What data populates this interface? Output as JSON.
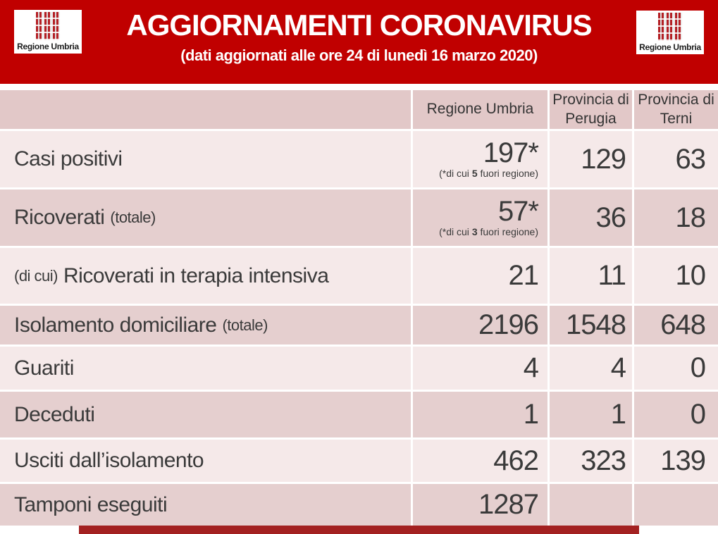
{
  "banner": {
    "title": "AGGIORNAMENTI CORONAVIRUS",
    "subtitle": "(dati aggiornati alle ore 24 di lunedì 16 marzo 2020)",
    "logo_text": "Regione Umbria"
  },
  "colors": {
    "banner_red": "#C00000",
    "footer_bar_red": "#A32121",
    "table_header_row": "#E2C8C8",
    "row_dark": "#E5CFCF",
    "row_light": "#F5E9E9",
    "text": "#3A3A3A"
  },
  "table": {
    "columns": {
      "c1": "Regione Umbria",
      "c2": "Provincia di Perugia",
      "c3": "Provincia di Terni"
    },
    "rows": [
      {
        "label": "Casi positivi",
        "label_small_pre": "",
        "label_small_suf": "",
        "umbria": "197*",
        "note_pre": "(*di cui ",
        "note_num": "5",
        "note_post": " fuori regione)",
        "perugia": "129",
        "terni": "63"
      },
      {
        "label": "Ricoverati",
        "label_small_pre": "",
        "label_small_suf": "(totale)",
        "umbria": "57*",
        "note_pre": "(*di cui ",
        "note_num": "3",
        "note_post": " fuori regione)",
        "perugia": "36",
        "terni": "18"
      },
      {
        "label": "Ricoverati in terapia intensiva",
        "label_small_pre": "(di cui)",
        "label_small_suf": "",
        "umbria": "21",
        "perugia": "11",
        "terni": "10"
      },
      {
        "label": "Isolamento domiciliare",
        "label_small_pre": "",
        "label_small_suf": "(totale)",
        "umbria": "2196",
        "perugia": "1548",
        "terni": "648"
      },
      {
        "label": "Guariti",
        "label_small_pre": "",
        "label_small_suf": "",
        "umbria": "4",
        "perugia": "4",
        "terni": "0"
      },
      {
        "label": "Deceduti",
        "label_small_pre": "",
        "label_small_suf": "",
        "umbria": "1",
        "perugia": "1",
        "terni": "0"
      },
      {
        "label": "Usciti dall’isolamento",
        "label_small_pre": "",
        "label_small_suf": "",
        "umbria": "462",
        "perugia": "323",
        "terni": "139"
      },
      {
        "label": "Tamponi eseguiti",
        "label_small_pre": "",
        "label_small_suf": "",
        "umbria": "1287",
        "perugia": "",
        "terni": ""
      }
    ]
  }
}
